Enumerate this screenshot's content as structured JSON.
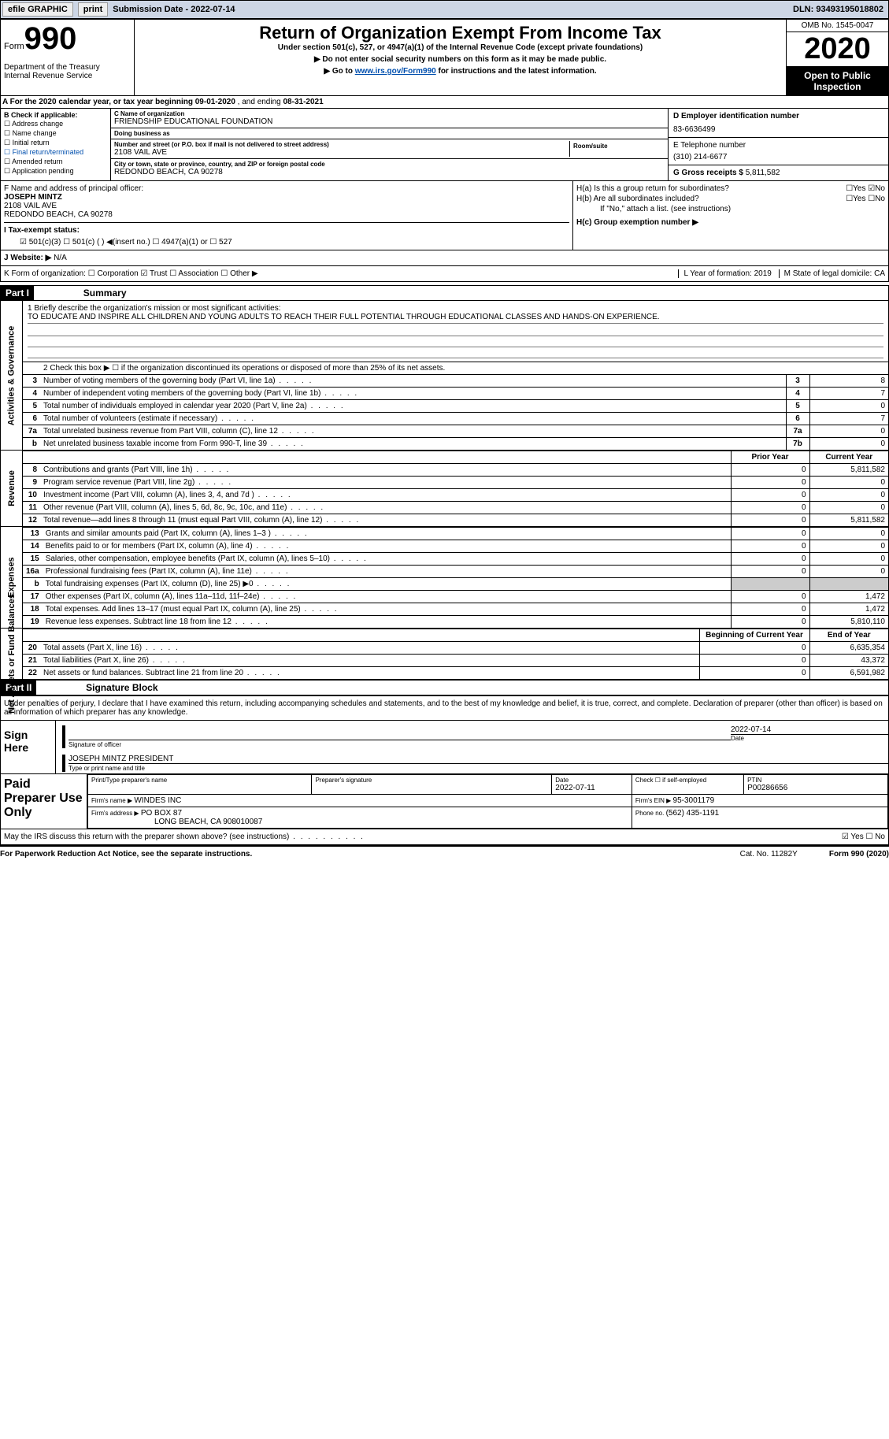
{
  "toolbar": {
    "efile": "efile GRAPHIC",
    "print": "print",
    "submission_label": "Submission Date - ",
    "submission_date": "2022-07-14",
    "dln_label": "DLN: ",
    "dln": "93493195018802"
  },
  "header": {
    "form_word": "Form",
    "form_num": "990",
    "dept": "Department of the Treasury\nInternal Revenue Service",
    "title": "Return of Organization Exempt From Income Tax",
    "subtitle": "Under section 501(c), 527, or 4947(a)(1) of the Internal Revenue Code (except private foundations)",
    "warn1": "▶ Do not enter social security numbers on this form as it may be made public.",
    "warn2_pre": "▶ Go to ",
    "warn2_link": "www.irs.gov/Form990",
    "warn2_post": " for instructions and the latest information.",
    "omb": "OMB No. 1545-0047",
    "year": "2020",
    "open": "Open to Public Inspection"
  },
  "line_a": {
    "text_pre": "A For the 2020 calendar year, or tax year beginning ",
    "begin": "09-01-2020",
    "mid": "   , and ending ",
    "end": "08-31-2021"
  },
  "box_b": {
    "heading": "B Check if applicable:",
    "items": [
      "☐ Address change",
      "☐ Name change",
      "☐ Initial return",
      "☐ Final return/terminated",
      "☐ Amended return",
      "☐ Application pending"
    ]
  },
  "box_c": {
    "name_label": "C Name of organization",
    "name": "FRIENDSHIP EDUCATIONAL FOUNDATION",
    "dba_label": "Doing business as",
    "dba": "",
    "addr_label": "Number and street (or P.O. box if mail is not delivered to street address)",
    "room_label": "Room/suite",
    "addr": "2108 VAIL AVE",
    "city_label": "City or town, state or province, country, and ZIP or foreign postal code",
    "city": "REDONDO BEACH, CA  90278"
  },
  "box_d": {
    "label": "D Employer identification number",
    "val": "83-6636499"
  },
  "box_e": {
    "label": "E Telephone number",
    "val": "(310) 214-6677"
  },
  "box_g": {
    "label": "G Gross receipts $ ",
    "val": "5,811,582"
  },
  "box_f": {
    "label": "F  Name and address of principal officer:",
    "name": "JOSEPH MINTZ",
    "addr1": "2108 VAIL AVE",
    "addr2": "REDONDO BEACH, CA  90278"
  },
  "box_h": {
    "a_label": "H(a)  Is this a group return for subordinates?",
    "a_val": "☐Yes ☑No",
    "b_label": "H(b)  Are all subordinates included?",
    "b_val": "☐Yes ☐No",
    "b_note": "If \"No,\" attach a list. (see instructions)",
    "c_label": "H(c)  Group exemption number ▶"
  },
  "box_i": {
    "label": "I    Tax-exempt status:",
    "opts": "☑ 501(c)(3)    ☐  501(c) (  ) ◀(insert no.)     ☐  4947(a)(1) or   ☐  527"
  },
  "box_j": {
    "label": "J    Website: ▶  ",
    "val": "N/A"
  },
  "box_k": {
    "label": "K Form of organization:  ☐ Corporation  ☑ Trust  ☐ Association  ☐ Other ▶",
    "l": "L Year of formation: 2019",
    "m": "M State of legal domicile: CA"
  },
  "part1": {
    "tag": "Part I",
    "title": "Summary",
    "q1_label": "1  Briefly describe the organization's mission or most significant activities:",
    "q1_val": "TO EDUCATE AND INSPIRE ALL CHILDREN AND YOUNG ADULTS TO REACH THEIR FULL POTENTIAL THROUGH EDUCATIONAL CLASSES AND HANDS-ON EXPERIENCE.",
    "q2": "2   Check this box ▶ ☐  if the organization discontinued its operations or disposed of more than 25% of its net assets.",
    "governance": [
      {
        "n": "3",
        "t": "Number of voting members of the governing body (Part VI, line 1a)",
        "b": "3",
        "v": "8"
      },
      {
        "n": "4",
        "t": "Number of independent voting members of the governing body (Part VI, line 1b)",
        "b": "4",
        "v": "7"
      },
      {
        "n": "5",
        "t": "Total number of individuals employed in calendar year 2020 (Part V, line 2a)",
        "b": "5",
        "v": "0"
      },
      {
        "n": "6",
        "t": "Total number of volunteers (estimate if necessary)",
        "b": "6",
        "v": "7"
      },
      {
        "n": "7a",
        "t": "Total unrelated business revenue from Part VIII, column (C), line 12",
        "b": "7a",
        "v": "0"
      },
      {
        "n": "b",
        "t": "Net unrelated business taxable income from Form 990-T, line 39",
        "b": "7b",
        "v": "0"
      }
    ],
    "col_prior": "Prior Year",
    "col_current": "Current Year",
    "revenue": [
      {
        "n": "8",
        "t": "Contributions and grants (Part VIII, line 1h)",
        "p": "0",
        "c": "5,811,582"
      },
      {
        "n": "9",
        "t": "Program service revenue (Part VIII, line 2g)",
        "p": "0",
        "c": "0"
      },
      {
        "n": "10",
        "t": "Investment income (Part VIII, column (A), lines 3, 4, and 7d )",
        "p": "0",
        "c": "0"
      },
      {
        "n": "11",
        "t": "Other revenue (Part VIII, column (A), lines 5, 6d, 8c, 9c, 10c, and 11e)",
        "p": "0",
        "c": "0"
      },
      {
        "n": "12",
        "t": "Total revenue—add lines 8 through 11 (must equal Part VIII, column (A), line 12)",
        "p": "0",
        "c": "5,811,582"
      }
    ],
    "expenses": [
      {
        "n": "13",
        "t": "Grants and similar amounts paid (Part IX, column (A), lines 1–3 )",
        "p": "0",
        "c": "0"
      },
      {
        "n": "14",
        "t": "Benefits paid to or for members (Part IX, column (A), line 4)",
        "p": "0",
        "c": "0"
      },
      {
        "n": "15",
        "t": "Salaries, other compensation, employee benefits (Part IX, column (A), lines 5–10)",
        "p": "0",
        "c": "0"
      },
      {
        "n": "16a",
        "t": "Professional fundraising fees (Part IX, column (A), line 11e)",
        "p": "0",
        "c": "0"
      },
      {
        "n": "b",
        "t": "Total fundraising expenses (Part IX, column (D), line 25) ▶0",
        "p": "shaded",
        "c": "shaded"
      },
      {
        "n": "17",
        "t": "Other expenses (Part IX, column (A), lines 11a–11d, 11f–24e)",
        "p": "0",
        "c": "1,472"
      },
      {
        "n": "18",
        "t": "Total expenses. Add lines 13–17 (must equal Part IX, column (A), line 25)",
        "p": "0",
        "c": "1,472"
      },
      {
        "n": "19",
        "t": "Revenue less expenses. Subtract line 18 from line 12",
        "p": "0",
        "c": "5,810,110"
      }
    ],
    "col_begin": "Beginning of Current Year",
    "col_end": "End of Year",
    "netassets": [
      {
        "n": "20",
        "t": "Total assets (Part X, line 16)",
        "p": "0",
        "c": "6,635,354"
      },
      {
        "n": "21",
        "t": "Total liabilities (Part X, line 26)",
        "p": "0",
        "c": "43,372"
      },
      {
        "n": "22",
        "t": "Net assets or fund balances. Subtract line 21 from line 20",
        "p": "0",
        "c": "6,591,982"
      }
    ]
  },
  "part2": {
    "tag": "Part II",
    "title": "Signature Block",
    "declaration": "Under penalties of perjury, I declare that I have examined this return, including accompanying schedules and statements, and to the best of my knowledge and belief, it is true, correct, and complete. Declaration of preparer (other than officer) is based on all information of which preparer has any knowledge.",
    "sign_here": "Sign Here",
    "sig_officer": "Signature of officer",
    "sig_date_label": "Date",
    "sig_date": "2022-07-14",
    "officer_name": "JOSEPH MINTZ  PRESIDENT",
    "officer_name_label": "Type or print name and title",
    "paid_label": "Paid Preparer Use Only",
    "prep_name_label": "Print/Type preparer's name",
    "prep_sig_label": "Preparer's signature",
    "prep_date_label": "Date",
    "prep_date": "2022-07-11",
    "check_self": "Check ☐ if self-employed",
    "ptin_label": "PTIN",
    "ptin": "P00286656",
    "firm_name_label": "Firm's name    ▶ ",
    "firm_name": "WINDES INC",
    "firm_ein_label": "Firm's EIN ▶ ",
    "firm_ein": "95-3001179",
    "firm_addr_label": "Firm's address ▶ ",
    "firm_addr": "PO BOX 87",
    "firm_addr2": "LONG BEACH, CA  908010087",
    "phone_label": "Phone no. ",
    "phone": "(562) 435-1191",
    "may_irs": "May the IRS discuss this return with the preparer shown above? (see instructions)",
    "may_val": "☑ Yes  ☐ No"
  },
  "footer": {
    "pra": "For Paperwork Reduction Act Notice, see the separate instructions.",
    "cat": "Cat. No. 11282Y",
    "form": "Form 990 (2020)"
  },
  "vtabs": {
    "gov": "Activities & Governance",
    "rev": "Revenue",
    "exp": "Expenses",
    "net": "Net Assets or Fund Balances"
  }
}
